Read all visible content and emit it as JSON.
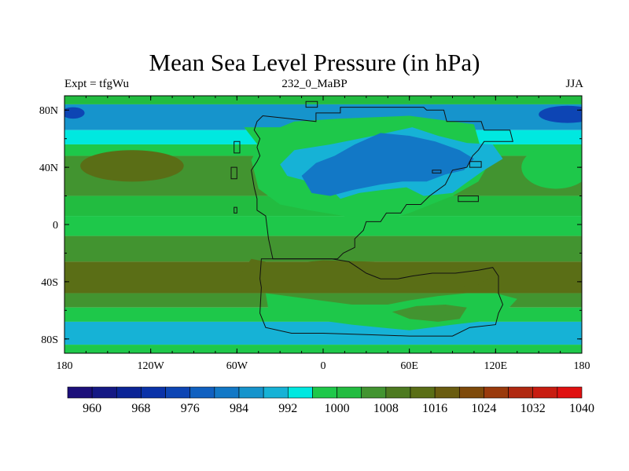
{
  "chart_data": {
    "type": "heatmap",
    "title": "Mean Sea Level Pressure (in hPa)",
    "left_string": "Expt = tfgWu",
    "center_string": "232_0_MaBP",
    "right_string": "JJA",
    "x_range": [
      -180,
      180
    ],
    "y_range": [
      -90,
      90
    ],
    "x_ticks": [
      {
        "value": -180,
        "label": "180"
      },
      {
        "value": -120,
        "label": "120W"
      },
      {
        "value": -60,
        "label": "60W"
      },
      {
        "value": 0,
        "label": "0"
      },
      {
        "value": 60,
        "label": "60E"
      },
      {
        "value": 120,
        "label": "120E"
      },
      {
        "value": 180,
        "label": "180"
      }
    ],
    "y_ticks": [
      {
        "value": 80,
        "label": "80N"
      },
      {
        "value": 40,
        "label": "40N"
      },
      {
        "value": 0,
        "label": "0"
      },
      {
        "value": -40,
        "label": "40S"
      },
      {
        "value": -80,
        "label": "80S"
      }
    ],
    "colorbar": {
      "levels": [
        960,
        964,
        968,
        972,
        976,
        980,
        984,
        988,
        992,
        996,
        1000,
        1004,
        1008,
        1012,
        1016,
        1020,
        1024,
        1028,
        1032,
        1036,
        1040
      ],
      "labels": [
        "960",
        "968",
        "976",
        "984",
        "992",
        "1000",
        "1008",
        "1016",
        "1024",
        "1032",
        "1040"
      ],
      "colors": [
        "#1c0f7a",
        "#141884",
        "#0b2496",
        "#0a32a8",
        "#0d45b4",
        "#1060c0",
        "#1278c6",
        "#1694cc",
        "#16b2d6",
        "#00e8e0",
        "#1ec84a",
        "#22bc40",
        "#429430",
        "#4d7a20",
        "#5a6e16",
        "#6a5c10",
        "#7e4a0a",
        "#9a3a0c",
        "#b02810",
        "#c81c10",
        "#e01010"
      ]
    },
    "field_bands": [
      {
        "lat_from": 90,
        "lat_to": 84,
        "level": 1004
      },
      {
        "lat_from": 84,
        "lat_to": 66,
        "level": 988
      },
      {
        "lat_from": 66,
        "lat_to": 56,
        "level": 996
      },
      {
        "lat_from": 56,
        "lat_to": 48,
        "level": 1000
      },
      {
        "lat_from": 48,
        "lat_to": 20,
        "level": 1008
      },
      {
        "lat_from": 20,
        "lat_to": 6,
        "level": 1004
      },
      {
        "lat_from": 6,
        "lat_to": -8,
        "level": 1000
      },
      {
        "lat_from": -8,
        "lat_to": -26,
        "level": 1008
      },
      {
        "lat_from": -26,
        "lat_to": -48,
        "level": 1016
      },
      {
        "lat_from": -48,
        "lat_to": -58,
        "level": 1008
      },
      {
        "lat_from": -58,
        "lat_to": -68,
        "level": 1000
      },
      {
        "lat_from": -68,
        "lat_to": -84,
        "level": 992
      },
      {
        "lat_from": -84,
        "lat_to": -90,
        "level": 1000
      }
    ],
    "field_features": [
      {
        "shape": "ellipse",
        "lon": -133,
        "lat": 41,
        "rlon": 36,
        "rlat": 11,
        "level": 1016
      },
      {
        "shape": "ellipse",
        "lon": 162,
        "lat": 40,
        "rlon": 24,
        "rlat": 15,
        "level": 1000
      },
      {
        "shape": "ellipse",
        "lon": -174,
        "lat": 78,
        "rlon": 8,
        "rlat": 4,
        "level": 976
      },
      {
        "shape": "ellipse",
        "lon": 170,
        "lat": 77,
        "rlon": 20,
        "rlat": 6,
        "level": 976
      },
      {
        "shape": "polygon",
        "level": 1000,
        "points": [
          [
            -55,
            68
          ],
          [
            -30,
            68
          ],
          [
            -20,
            72
          ],
          [
            10,
            74
          ],
          [
            60,
            76
          ],
          [
            105,
            70
          ],
          [
            110,
            52
          ],
          [
            115,
            42
          ],
          [
            108,
            30
          ],
          [
            90,
            20
          ],
          [
            60,
            8
          ],
          [
            40,
            2
          ],
          [
            20,
            5
          ],
          [
            -10,
            10
          ],
          [
            -30,
            14
          ],
          [
            -45,
            25
          ],
          [
            -50,
            45
          ],
          [
            -45,
            55
          ]
        ]
      },
      {
        "shape": "polygon",
        "level": 992,
        "points": [
          [
            -30,
            42
          ],
          [
            -20,
            52
          ],
          [
            5,
            56
          ],
          [
            35,
            62
          ],
          [
            62,
            68
          ],
          [
            80,
            62
          ],
          [
            100,
            57
          ],
          [
            118,
            56
          ],
          [
            125,
            46
          ],
          [
            112,
            38
          ],
          [
            98,
            28
          ],
          [
            90,
            22
          ],
          [
            70,
            20
          ],
          [
            58,
            26
          ],
          [
            40,
            24
          ],
          [
            25,
            22
          ],
          [
            12,
            18
          ],
          [
            5,
            25
          ],
          [
            -10,
            30
          ],
          [
            -25,
            34
          ]
        ]
      },
      {
        "shape": "polygon",
        "level": 984,
        "points": [
          [
            -15,
            34
          ],
          [
            -5,
            43
          ],
          [
            8,
            48
          ],
          [
            22,
            56
          ],
          [
            40,
            64
          ],
          [
            60,
            62
          ],
          [
            78,
            58
          ],
          [
            95,
            52
          ],
          [
            105,
            46
          ],
          [
            98,
            38
          ],
          [
            85,
            35
          ],
          [
            72,
            30
          ],
          [
            55,
            30
          ],
          [
            40,
            28
          ],
          [
            20,
            24
          ],
          [
            5,
            20
          ],
          [
            -8,
            22
          ]
        ]
      },
      {
        "shape": "polygon",
        "level": 1016,
        "points": [
          [
            -50,
            -24
          ],
          [
            -30,
            -28
          ],
          [
            0,
            -25
          ],
          [
            35,
            -26
          ],
          [
            70,
            -28
          ],
          [
            100,
            -31
          ],
          [
            120,
            -35
          ],
          [
            108,
            -42
          ],
          [
            90,
            -44
          ],
          [
            70,
            -46
          ],
          [
            45,
            -44
          ],
          [
            15,
            -42
          ],
          [
            -15,
            -41
          ],
          [
            -40,
            -40
          ],
          [
            -60,
            -38
          ]
        ]
      },
      {
        "shape": "polygon",
        "level": 1000,
        "points": [
          [
            -40,
            -48
          ],
          [
            -10,
            -52
          ],
          [
            20,
            -56
          ],
          [
            45,
            -56
          ],
          [
            60,
            -53
          ],
          [
            80,
            -50
          ],
          [
            100,
            -48
          ],
          [
            120,
            -48
          ],
          [
            135,
            -52
          ],
          [
            124,
            -64
          ],
          [
            108,
            -68
          ],
          [
            90,
            -70
          ],
          [
            60,
            -74
          ],
          [
            40,
            -72
          ],
          [
            20,
            -70
          ],
          [
            5,
            -68
          ],
          [
            -15,
            -65
          ],
          [
            -38,
            -60
          ]
        ]
      },
      {
        "shape": "polygon",
        "level": 1008,
        "points": [
          [
            48,
            -61
          ],
          [
            65,
            -57
          ],
          [
            85,
            -56
          ],
          [
            100,
            -58
          ],
          [
            95,
            -66
          ],
          [
            80,
            -68
          ],
          [
            60,
            -66
          ]
        ]
      }
    ],
    "continent_outline": [
      [
        -42,
        76
      ],
      [
        -5,
        72
      ],
      [
        -5,
        78
      ],
      [
        12,
        78
      ],
      [
        12,
        82
      ],
      [
        30,
        82
      ],
      [
        70,
        82
      ],
      [
        72,
        80
      ],
      [
        84,
        80
      ],
      [
        86,
        72
      ],
      [
        110,
        72
      ],
      [
        112,
        66
      ],
      [
        130,
        66
      ],
      [
        132,
        58
      ],
      [
        112,
        58
      ],
      [
        108,
        52
      ],
      [
        104,
        48
      ],
      [
        100,
        40
      ],
      [
        90,
        38
      ],
      [
        85,
        28
      ],
      [
        74,
        20
      ],
      [
        68,
        14
      ],
      [
        58,
        14
      ],
      [
        54,
        8
      ],
      [
        44,
        8
      ],
      [
        40,
        2
      ],
      [
        30,
        2
      ],
      [
        28,
        -4
      ],
      [
        22,
        -10
      ],
      [
        22,
        -16
      ],
      [
        14,
        -20
      ],
      [
        10,
        -24
      ],
      [
        -35,
        -24
      ],
      [
        -38,
        -10
      ],
      [
        -40,
        6
      ],
      [
        -46,
        10
      ],
      [
        -46,
        18
      ],
      [
        -48,
        26
      ],
      [
        -50,
        38
      ],
      [
        -46,
        44
      ],
      [
        -44,
        48
      ],
      [
        -46,
        54
      ],
      [
        -44,
        60
      ],
      [
        -48,
        66
      ],
      [
        -46,
        72
      ]
    ],
    "gondwana_outline": [
      [
        -43,
        -24
      ],
      [
        -44,
        -38
      ],
      [
        -43,
        -44
      ],
      [
        -44,
        -62
      ],
      [
        -40,
        -72
      ],
      [
        -22,
        -76
      ],
      [
        0,
        -76
      ],
      [
        30,
        -77
      ],
      [
        60,
        -78
      ],
      [
        90,
        -78
      ],
      [
        102,
        -72
      ],
      [
        120,
        -70
      ],
      [
        122,
        -62
      ],
      [
        125,
        -56
      ],
      [
        122,
        -48
      ],
      [
        122,
        -36
      ],
      [
        118,
        -30
      ],
      [
        108,
        -32
      ],
      [
        92,
        -34
      ],
      [
        76,
        -34
      ],
      [
        62,
        -36
      ],
      [
        52,
        -38
      ],
      [
        40,
        -38
      ],
      [
        30,
        -34
      ],
      [
        24,
        -30
      ],
      [
        18,
        -26
      ],
      [
        6,
        -24
      ]
    ],
    "islands": [
      [
        [
          -62,
          50
        ],
        [
          -58,
          50
        ],
        [
          -58,
          58
        ],
        [
          -62,
          58
        ]
      ],
      [
        [
          -64,
          32
        ],
        [
          -60,
          32
        ],
        [
          -60,
          40
        ],
        [
          -64,
          40
        ]
      ],
      [
        [
          -62,
          8
        ],
        [
          -60,
          8
        ],
        [
          -60,
          12
        ],
        [
          -62,
          12
        ]
      ],
      [
        [
          -12,
          82
        ],
        [
          -4,
          82
        ],
        [
          -4,
          86
        ],
        [
          -12,
          86
        ]
      ],
      [
        [
          94,
          16
        ],
        [
          108,
          16
        ],
        [
          108,
          20
        ],
        [
          94,
          20
        ]
      ],
      [
        [
          102,
          40
        ],
        [
          110,
          40
        ],
        [
          110,
          44
        ],
        [
          102,
          44
        ]
      ],
      [
        [
          76,
          36
        ],
        [
          82,
          36
        ],
        [
          82,
          38
        ],
        [
          76,
          38
        ]
      ]
    ]
  }
}
